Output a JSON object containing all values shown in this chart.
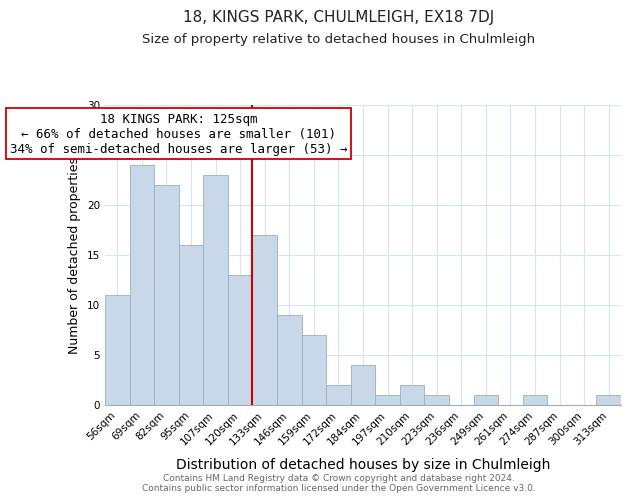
{
  "title": "18, KINGS PARK, CHULMLEIGH, EX18 7DJ",
  "subtitle": "Size of property relative to detached houses in Chulmleigh",
  "xlabel": "Distribution of detached houses by size in Chulmleigh",
  "ylabel": "Number of detached properties",
  "footer_lines": [
    "Contains HM Land Registry data © Crown copyright and database right 2024.",
    "Contains public sector information licensed under the Open Government Licence v3.0."
  ],
  "bin_labels": [
    "56sqm",
    "69sqm",
    "82sqm",
    "95sqm",
    "107sqm",
    "120sqm",
    "133sqm",
    "146sqm",
    "159sqm",
    "172sqm",
    "184sqm",
    "197sqm",
    "210sqm",
    "223sqm",
    "236sqm",
    "249sqm",
    "261sqm",
    "274sqm",
    "287sqm",
    "300sqm",
    "313sqm"
  ],
  "bar_values": [
    11,
    24,
    22,
    16,
    23,
    13,
    17,
    9,
    7,
    2,
    4,
    1,
    2,
    1,
    0,
    1,
    0,
    1,
    0,
    0,
    1
  ],
  "bar_color": "#c8d8e8",
  "bar_edge_color": "#9aafc0",
  "vline_x": 5.5,
  "vline_color": "#cc0000",
  "annotation_text": "18 KINGS PARK: 125sqm\n← 66% of detached houses are smaller (101)\n34% of semi-detached houses are larger (53) →",
  "annotation_box_edgecolor": "#cc0000",
  "annotation_box_facecolor": "#ffffff",
  "ylim": [
    0,
    30
  ],
  "yticks": [
    0,
    5,
    10,
    15,
    20,
    25,
    30
  ],
  "grid_color": "#d8e4ed",
  "background_color": "#ffffff",
  "title_fontsize": 11,
  "subtitle_fontsize": 9.5,
  "xlabel_fontsize": 10,
  "ylabel_fontsize": 9,
  "annotation_fontsize": 9,
  "tick_fontsize": 7.5,
  "footer_fontsize": 6.5
}
